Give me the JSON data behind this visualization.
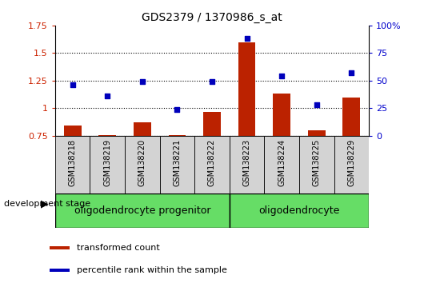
{
  "title": "GDS2379 / 1370986_s_at",
  "samples": [
    "GSM138218",
    "GSM138219",
    "GSM138220",
    "GSM138221",
    "GSM138222",
    "GSM138223",
    "GSM138224",
    "GSM138225",
    "GSM138229"
  ],
  "transformed_count": [
    0.84,
    0.76,
    0.87,
    0.76,
    0.97,
    1.6,
    1.13,
    0.8,
    1.1
  ],
  "percentile_rank": [
    46,
    36,
    49,
    24,
    49,
    88,
    54,
    28,
    57
  ],
  "ylim_left": [
    0.75,
    1.75
  ],
  "ylim_right": [
    0,
    100
  ],
  "yticks_left": [
    0.75,
    1.0,
    1.25,
    1.5,
    1.75
  ],
  "yticks_right": [
    0,
    25,
    50,
    75,
    100
  ],
  "ytick_labels_left": [
    "0.75",
    "1",
    "1.25",
    "1.5",
    "1.75"
  ],
  "ytick_labels_right": [
    "0",
    "25",
    "50",
    "75",
    "100%"
  ],
  "group1_label": "oligodendrocyte progenitor",
  "group1_count": 5,
  "group2_label": "oligodendrocyte",
  "group2_count": 4,
  "bar_color": "#BB2200",
  "scatter_color": "#0000BB",
  "bar_bottom": 0.75,
  "legend_label1": "transformed count",
  "legend_label2": "percentile rank within the sample",
  "left_yaxis_color": "#CC2200",
  "right_yaxis_color": "#0000CC",
  "development_stage_label": "development stage",
  "gray_color": "#D3D3D3",
  "green_color": "#66DD66",
  "title_fontsize": 10,
  "tick_fontsize": 8,
  "sample_fontsize": 7,
  "group_fontsize": 9,
  "legend_fontsize": 8,
  "dev_stage_fontsize": 8
}
